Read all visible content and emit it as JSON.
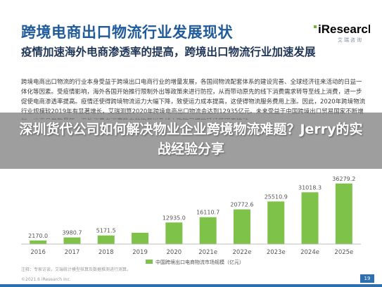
{
  "header": {
    "title": "跨境电商出口物流行业发展现状",
    "logo": "iResearch",
    "logo_sub": "艾瑞咨询"
  },
  "subtitle": "疫情加速海外电商渗透率的提高，跨境出口物流行业加速发展",
  "body": "跨境电商出口物流的行业本身受益于跨境出口电商行业的增量发展，各国间物流配套体系的建设完善、全球经济往来活动的日益一体化等因素。受疫情影响，海外各国开始推行限制外出等政策来进行防控，从而带动原先的线下消费需求转导至线上消费，进一步促使电商渗透率提高。疫情还使得跨境物流运力大幅下降，致使运力成本提高，这使得物流服务费用上涨。因此，2020年跨境物流行业规模较2019年有显著增长，艾瑞测算2020年跨境电商出口物流会达到12935亿元。未来受益于中国跨境出口贸易国家不断增加，出海品类数量等。海外消费者消费能力的恢复以及线上购物习惯的延续等因素推动，",
  "banner": "深圳货代公司如何解决物业企业跨境物流难题？Jerry的实战经验分享",
  "chart_data": {
    "type": "bar",
    "categories": [
      "2016",
      "2017",
      "2018",
      "2019",
      "2020",
      "2021e",
      "2022e",
      "2023e",
      "2024e",
      "2025e"
    ],
    "values": [
      2170.0,
      3980.7,
      5171.5,
      6797.0,
      12935.0,
      16110.7,
      20772.6,
      25510.9,
      31018.3,
      36279.2
    ],
    "labels": [
      "2170.0",
      "3980.7",
      "5171.5",
      "",
      "12935.0",
      "16110.7",
      "20772.6",
      "25510.9",
      "31018.3",
      "36279.2"
    ],
    "legend": "中国跨境出口电商物流市场规模（亿元）",
    "ylim": [
      0,
      40000
    ],
    "legend_position": "bottom",
    "colors": {
      "bar": "#7ec24a",
      "axis": "#bdbdbd",
      "text": "#555555"
    }
  },
  "footer": {
    "note": "注释：专家访谈，艾瑞统计模型核算及数据推测进行测算。",
    "copyright": "©2021.6 iResearch Inc.",
    "page": "19"
  }
}
